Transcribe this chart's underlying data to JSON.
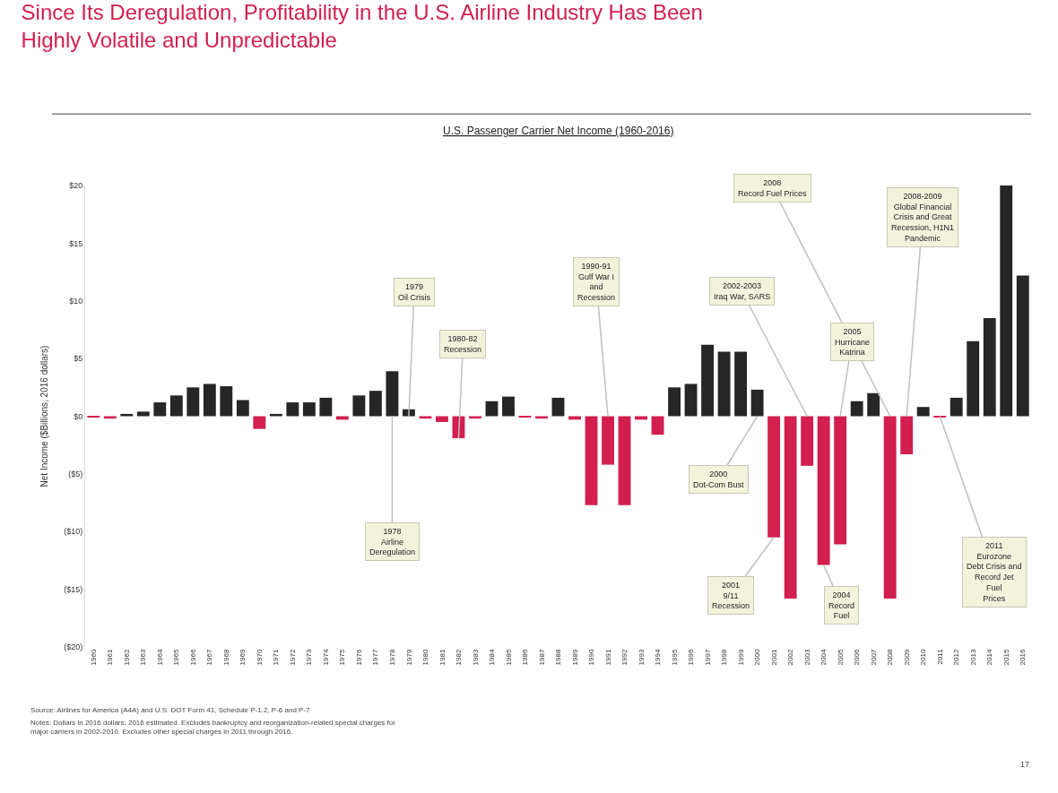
{
  "chart_data": {
    "type": "bar",
    "title": "Since Its Deregulation, Profitability in the U.S. Airline Industry Has Been\nHighly Volatile and Unpredictable",
    "subtitle": "U.S. Passenger Carrier Net Income (1960-2016)",
    "ylabel": "Net Income ($Billions, 2016 dollars)",
    "categories": [
      "1960",
      "1961",
      "1962",
      "1963",
      "1964",
      "1965",
      "1966",
      "1967",
      "1968",
      "1969",
      "1970",
      "1971",
      "1972",
      "1973",
      "1974",
      "1975",
      "1976",
      "1977",
      "1978",
      "1979",
      "1980",
      "1981",
      "1982",
      "1983",
      "1984",
      "1985",
      "1986",
      "1987",
      "1988",
      "1989",
      "1990",
      "1991",
      "1992",
      "1993",
      "1994",
      "1995",
      "1996",
      "1997",
      "1998",
      "1999",
      "2000",
      "2001",
      "2002",
      "2003",
      "2004",
      "2005",
      "2006",
      "2007",
      "2008",
      "2009",
      "2010",
      "2011",
      "2012",
      "2013",
      "2014",
      "2015",
      "2016"
    ],
    "values": [
      -0.1,
      -0.2,
      0.2,
      0.4,
      1.2,
      1.8,
      2.5,
      2.8,
      2.6,
      1.4,
      -1.1,
      0.2,
      1.2,
      1.2,
      1.6,
      -0.3,
      1.8,
      2.2,
      3.9,
      0.6,
      -0.2,
      -0.5,
      -1.9,
      -0.2,
      1.3,
      1.7,
      -0.1,
      -0.2,
      1.6,
      -0.3,
      -7.7,
      -4.2,
      -7.7,
      -0.3,
      -1.6,
      2.5,
      2.8,
      6.2,
      5.6,
      5.6,
      2.3,
      -10.5,
      -15.8,
      -4.3,
      -12.9,
      -11.1,
      1.3,
      2.0,
      -15.8,
      -3.3,
      0.8,
      -0.1,
      1.6,
      6.5,
      8.5,
      20.0,
      12.2
    ],
    "colors": [
      "#d21f4e",
      "#d21f4e",
      "#262626",
      "#262626",
      "#262626",
      "#262626",
      "#262626",
      "#262626",
      "#262626",
      "#262626",
      "#d21f4e",
      "#262626",
      "#262626",
      "#262626",
      "#262626",
      "#d21f4e",
      "#262626",
      "#262626",
      "#262626",
      "#262626",
      "#d21f4e",
      "#d21f4e",
      "#d21f4e",
      "#d21f4e",
      "#262626",
      "#262626",
      "#d21f4e",
      "#d21f4e",
      "#262626",
      "#d21f4e",
      "#d21f4e",
      "#d21f4e",
      "#d21f4e",
      "#d21f4e",
      "#d21f4e",
      "#262626",
      "#262626",
      "#262626",
      "#262626",
      "#262626",
      "#262626",
      "#d21f4e",
      "#d21f4e",
      "#d21f4e",
      "#d21f4e",
      "#d21f4e",
      "#262626",
      "#262626",
      "#d21f4e",
      "#d21f4e",
      "#262626",
      "#d21f4e",
      "#262626",
      "#262626",
      "#262626",
      "#262626",
      "#262626"
    ],
    "ylim": [
      -20,
      20
    ],
    "yticks": [
      {
        "value": 20,
        "label": "$20"
      },
      {
        "value": 15,
        "label": "$15"
      },
      {
        "value": 10,
        "label": "$10"
      },
      {
        "value": 5,
        "label": "$5"
      },
      {
        "value": 0,
        "label": "$0"
      },
      {
        "value": -5,
        "label": "($5)"
      },
      {
        "value": -10,
        "label": "($10)"
      },
      {
        "value": -15,
        "label": "($15)"
      },
      {
        "value": -20,
        "label": "($20)"
      }
    ],
    "annotations": [
      {
        "text": "1979\nOil Crisis",
        "x": "1979",
        "y": 0
      },
      {
        "text": "1978\nAirline\nDeregulation",
        "x": "1978",
        "y": 0
      },
      {
        "text": "1980-82\nRecession",
        "x": "1982",
        "y": -1.9
      },
      {
        "text": "1990-91\nGulf War I\nand\nRecession",
        "x": "1991",
        "y": 0
      },
      {
        "text": "2008\nRecord Fuel Prices",
        "x": "2008",
        "y": 0
      },
      {
        "text": "2002-2003\nIraq War, SARS",
        "x": "2003",
        "y": 0
      },
      {
        "text": "2005\nHurricane\nKatrina",
        "x": "2005",
        "y": 0
      },
      {
        "text": "2008-2009\nGlobal Financial\nCrisis and Great\nRecession, H1N1\nPandemic",
        "x": "2009",
        "y": 0
      },
      {
        "text": "2000\nDot-Com Bust",
        "x": "2000",
        "y": 0
      },
      {
        "text": "2001\n9/11\nRecession",
        "x": "2001",
        "y": -10.5
      },
      {
        "text": "2004\nRecord\nFuel",
        "x": "2004",
        "y": -12.9
      },
      {
        "text": "2011\nEurozone\nDebt Crisis and\nRecord Jet\nFuel\nPrices",
        "x": "2011",
        "y": 0
      },
      "Source: Airlines for America (A4A) and U.S. DOT Form 41, Schedule P-1.2, P-6 and P-7",
      "Notes: Dollars in 2016 dollars; 2016 estimated. Excludes bankruptcy and reorganization-related special charges for\nmajor carriers in 2002-2010. Excludes other special charges in 2011 through 2016.",
      "17"
    ]
  }
}
